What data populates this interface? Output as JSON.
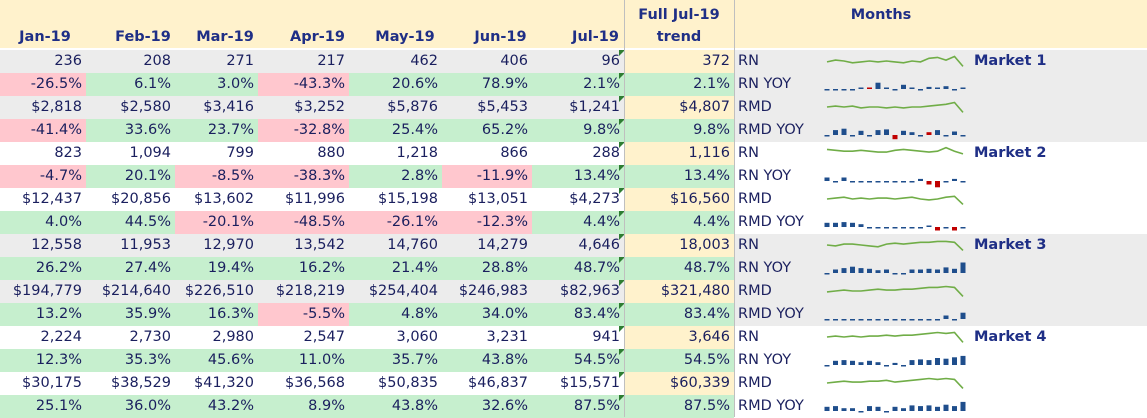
{
  "header": {
    "months": [
      "Jan-19",
      "Feb-19",
      "Mar-19",
      "Apr-19",
      "May-19",
      "Jun-19",
      "Jul-19"
    ],
    "full_line1": "Full Jul-19",
    "full_line2": "trend",
    "months_title": "Months"
  },
  "colors": {
    "header_bg": "#fff2cc",
    "grey_band": "#ececec",
    "green_fill": "#c6efce",
    "red_fill": "#ffc7ce",
    "full_bg": "#fff2cc",
    "sparkline_green": "#70ad47",
    "sparkbar_blue": "#1f4e8c",
    "sparkbar_red": "#c00000",
    "text_navy": "#1a1f5e"
  },
  "rows": [
    {
      "values": [
        "236",
        "208",
        "271",
        "217",
        "462",
        "406",
        "96"
      ],
      "full": "372",
      "label": "RN",
      "market": "Market 1",
      "type": "abs",
      "band": "grey",
      "cell_colors": [
        "",
        "",
        "",
        "",
        "",
        "",
        ""
      ]
    },
    {
      "values": [
        "-26.5%",
        "6.1%",
        "3.0%",
        "-43.3%",
        "20.6%",
        "78.9%",
        "2.1%"
      ],
      "full": "2.1%",
      "label": "RN YOY",
      "market": "",
      "type": "pct",
      "band": "grey",
      "cell_colors": [
        "red",
        "green",
        "green",
        "red",
        "green",
        "green",
        "green"
      ]
    },
    {
      "values": [
        "$2,818",
        "$2,580",
        "$3,416",
        "$3,252",
        "$5,876",
        "$5,453",
        "$1,241"
      ],
      "full": "$4,807",
      "label": "RMD",
      "market": "",
      "type": "abs",
      "band": "grey",
      "cell_colors": [
        "",
        "",
        "",
        "",
        "",
        "",
        ""
      ]
    },
    {
      "values": [
        "-41.4%",
        "33.6%",
        "23.7%",
        "-32.8%",
        "25.4%",
        "65.2%",
        "9.8%"
      ],
      "full": "9.8%",
      "label": "RMD YOY",
      "market": "",
      "type": "pct",
      "band": "grey",
      "cell_colors": [
        "red",
        "green",
        "green",
        "red",
        "green",
        "green",
        "green"
      ]
    },
    {
      "values": [
        "823",
        "1,094",
        "799",
        "880",
        "1,218",
        "866",
        "288"
      ],
      "full": "1,116",
      "label": "RN",
      "market": "Market 2",
      "type": "abs",
      "band": "white",
      "cell_colors": [
        "",
        "",
        "",
        "",
        "",
        "",
        ""
      ]
    },
    {
      "values": [
        "-4.7%",
        "20.1%",
        "-8.5%",
        "-38.3%",
        "2.8%",
        "-11.9%",
        "13.4%"
      ],
      "full": "13.4%",
      "label": "RN YOY",
      "market": "",
      "type": "pct",
      "band": "white",
      "cell_colors": [
        "red",
        "green",
        "red",
        "red",
        "green",
        "red",
        "green"
      ]
    },
    {
      "values": [
        "$12,437",
        "$20,856",
        "$13,602",
        "$11,996",
        "$15,198",
        "$13,051",
        "$4,273"
      ],
      "full": "$16,560",
      "label": "RMD",
      "market": "",
      "type": "abs",
      "band": "white",
      "cell_colors": [
        "",
        "",
        "",
        "",
        "",
        "",
        ""
      ]
    },
    {
      "values": [
        "4.0%",
        "44.5%",
        "-20.1%",
        "-48.5%",
        "-26.1%",
        "-12.3%",
        "4.4%"
      ],
      "full": "4.4%",
      "label": "RMD YOY",
      "market": "",
      "type": "pct",
      "band": "white",
      "cell_colors": [
        "green",
        "green",
        "red",
        "red",
        "red",
        "red",
        "green"
      ]
    },
    {
      "values": [
        "12,558",
        "11,953",
        "12,970",
        "13,542",
        "14,760",
        "14,279",
        "4,646"
      ],
      "full": "18,003",
      "label": "RN",
      "market": "Market 3",
      "type": "abs",
      "band": "grey",
      "cell_colors": [
        "",
        "",
        "",
        "",
        "",
        "",
        ""
      ]
    },
    {
      "values": [
        "26.2%",
        "27.4%",
        "19.4%",
        "16.2%",
        "21.4%",
        "28.8%",
        "48.7%"
      ],
      "full": "48.7%",
      "label": "RN YOY",
      "market": "",
      "type": "pct",
      "band": "grey",
      "cell_colors": [
        "green",
        "green",
        "green",
        "green",
        "green",
        "green",
        "green"
      ]
    },
    {
      "values": [
        "$194,779",
        "$214,640",
        "$226,510",
        "$218,219",
        "$254,404",
        "$246,983",
        "$82,963"
      ],
      "full": "$321,480",
      "label": "RMD",
      "market": "",
      "type": "abs",
      "band": "grey",
      "cell_colors": [
        "",
        "",
        "",
        "",
        "",
        "",
        ""
      ]
    },
    {
      "values": [
        "13.2%",
        "35.9%",
        "16.3%",
        "-5.5%",
        "4.8%",
        "34.0%",
        "83.4%"
      ],
      "full": "83.4%",
      "label": "RMD YOY",
      "market": "",
      "type": "pct",
      "band": "grey",
      "cell_colors": [
        "green",
        "green",
        "green",
        "red",
        "green",
        "green",
        "green"
      ]
    },
    {
      "values": [
        "2,224",
        "2,730",
        "2,980",
        "2,547",
        "3,060",
        "3,231",
        "941"
      ],
      "full": "3,646",
      "label": "RN",
      "market": "Market 4",
      "type": "abs",
      "band": "white",
      "cell_colors": [
        "",
        "",
        "",
        "",
        "",
        "",
        ""
      ]
    },
    {
      "values": [
        "12.3%",
        "35.3%",
        "45.6%",
        "11.0%",
        "35.7%",
        "43.8%",
        "54.5%"
      ],
      "full": "54.5%",
      "label": "RN YOY",
      "market": "",
      "type": "pct",
      "band": "white",
      "cell_colors": [
        "green",
        "green",
        "green",
        "green",
        "green",
        "green",
        "green"
      ]
    },
    {
      "values": [
        "$30,175",
        "$38,529",
        "$41,320",
        "$36,568",
        "$50,835",
        "$46,837",
        "$15,571"
      ],
      "full": "$60,339",
      "label": "RMD",
      "market": "",
      "type": "abs",
      "band": "white",
      "cell_colors": [
        "",
        "",
        "",
        "",
        "",
        "",
        ""
      ]
    },
    {
      "values": [
        "25.1%",
        "36.0%",
        "43.2%",
        "8.9%",
        "43.8%",
        "32.6%",
        "87.5%"
      ],
      "full": "87.5%",
      "label": "RMD YOY",
      "market": "",
      "type": "pct",
      "band": "white",
      "cell_colors": [
        "green",
        "green",
        "green",
        "green",
        "green",
        "green",
        "green"
      ]
    }
  ],
  "sparklines": [
    {
      "kind": "line",
      "points": [
        0.55,
        0.45,
        0.5,
        0.6,
        0.55,
        0.5,
        0.55,
        0.5,
        0.55,
        0.6,
        0.5,
        0.55,
        0.35,
        0.3,
        0.45,
        0.25,
        0.8
      ]
    },
    {
      "kind": "bar",
      "points": [
        -0.1,
        -0.1,
        -0.1,
        -0.1,
        0.05,
        0.05,
        0.45,
        0.05,
        -0.1,
        0.3,
        0.05,
        -0.1,
        0.15,
        0.05,
        0.2,
        -0.1,
        0.05
      ],
      "neg": [
        5
      ]
    },
    {
      "kind": "line",
      "points": [
        0.5,
        0.45,
        0.5,
        0.45,
        0.55,
        0.5,
        0.5,
        0.55,
        0.5,
        0.55,
        0.5,
        0.5,
        0.45,
        0.4,
        0.35,
        0.25,
        0.8
      ]
    },
    {
      "kind": "bar",
      "points": [
        -0.1,
        0.35,
        0.45,
        -0.1,
        0.3,
        -0.1,
        0.35,
        0.4,
        -0.3,
        0.3,
        0.2,
        -0.1,
        0.2,
        0.35,
        -0.1,
        0.25,
        -0.1
      ],
      "neg": [
        8,
        12
      ]
    },
    {
      "kind": "line",
      "points": [
        0.3,
        0.35,
        0.4,
        0.4,
        0.35,
        0.4,
        0.45,
        0.45,
        0.35,
        0.3,
        0.35,
        0.4,
        0.45,
        0.4,
        0.2,
        0.4,
        0.55
      ]
    },
    {
      "kind": "bar",
      "points": [
        0.25,
        -0.1,
        0.25,
        -0.1,
        -0.1,
        -0.1,
        -0.1,
        -0.1,
        -0.1,
        -0.1,
        -0.1,
        0.15,
        -0.25,
        -0.45,
        -0.1,
        0.15,
        -0.1
      ],
      "neg": [
        12,
        13
      ]
    },
    {
      "kind": "line",
      "points": [
        0.5,
        0.45,
        0.4,
        0.5,
        0.45,
        0.5,
        0.45,
        0.45,
        0.5,
        0.45,
        0.4,
        0.5,
        0.55,
        0.5,
        0.4,
        0.35,
        0.8
      ]
    },
    {
      "kind": "bar",
      "points": [
        0.3,
        0.3,
        0.35,
        0.3,
        0.2,
        -0.1,
        -0.1,
        -0.1,
        -0.1,
        -0.1,
        -0.1,
        -0.1,
        0.1,
        -0.25,
        -0.1,
        -0.25,
        -0.1
      ],
      "neg": [
        13,
        15
      ]
    },
    {
      "kind": "line",
      "points": [
        0.5,
        0.55,
        0.45,
        0.45,
        0.5,
        0.55,
        0.6,
        0.45,
        0.4,
        0.45,
        0.4,
        0.35,
        0.35,
        0.3,
        0.3,
        0.35,
        0.8
      ]
    },
    {
      "kind": "bar",
      "points": [
        -0.1,
        0.25,
        0.35,
        0.45,
        0.35,
        0.3,
        0.2,
        0.25,
        -0.1,
        -0.1,
        0.25,
        0.25,
        0.3,
        0.25,
        0.4,
        0.3,
        0.75
      ],
      "neg": []
    },
    {
      "kind": "line",
      "points": [
        0.55,
        0.5,
        0.45,
        0.5,
        0.5,
        0.45,
        0.4,
        0.45,
        0.45,
        0.4,
        0.4,
        0.35,
        0.3,
        0.3,
        0.25,
        0.3,
        0.8
      ]
    },
    {
      "kind": "bar",
      "points": [
        -0.1,
        -0.1,
        -0.1,
        -0.1,
        -0.1,
        -0.1,
        -0.1,
        -0.1,
        -0.1,
        -0.1,
        -0.1,
        -0.1,
        -0.1,
        -0.1,
        0.25,
        -0.1,
        0.45
      ],
      "neg": []
    },
    {
      "kind": "line",
      "points": [
        0.5,
        0.45,
        0.5,
        0.45,
        0.5,
        0.45,
        0.45,
        0.4,
        0.45,
        0.4,
        0.4,
        0.35,
        0.3,
        0.25,
        0.3,
        0.25,
        0.8
      ]
    },
    {
      "kind": "bar",
      "points": [
        -0.1,
        0.3,
        0.35,
        0.3,
        0.2,
        0.3,
        0.2,
        -0.1,
        0.15,
        -0.1,
        0.35,
        0.4,
        0.35,
        0.5,
        0.45,
        0.55,
        0.65
      ],
      "neg": []
    },
    {
      "kind": "line",
      "points": [
        0.5,
        0.45,
        0.4,
        0.45,
        0.45,
        0.4,
        0.4,
        0.35,
        0.45,
        0.4,
        0.35,
        0.3,
        0.25,
        0.3,
        0.25,
        0.3,
        0.8
      ]
    },
    {
      "kind": "bar",
      "points": [
        0.3,
        0.35,
        0.2,
        0.2,
        -0.1,
        0.35,
        0.3,
        -0.1,
        0.3,
        0.2,
        0.4,
        0.35,
        0.4,
        0.3,
        0.45,
        0.35,
        0.65
      ],
      "neg": []
    }
  ]
}
